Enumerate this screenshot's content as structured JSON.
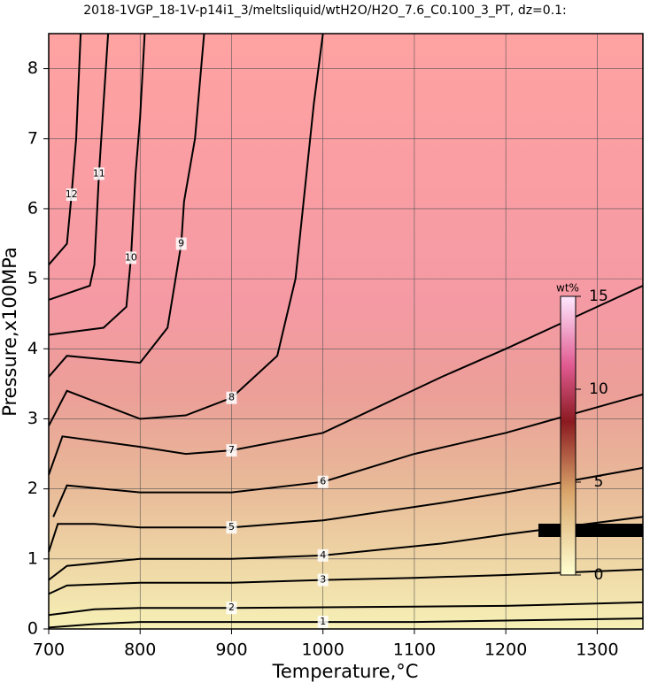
{
  "chart_data": {
    "type": "contour",
    "title": "2018-1VGP_18-1V-p14i1_3/meltsliquid/wtH2O/H2O_7.6_C0.100_3_PT, dz=0.1:",
    "x_label": "Temperature,°C",
    "y_label": "Pressure,x100MPa",
    "xlim": [
      700,
      1350
    ],
    "xticks": [
      700,
      800,
      900,
      1000,
      1100,
      1200,
      1300
    ],
    "ylim": [
      0,
      8.5
    ],
    "yticks": [
      0,
      1,
      2,
      3,
      4,
      5,
      6,
      7,
      8
    ],
    "grid": true,
    "line_color": "#000000",
    "contours": [
      {
        "level": 1,
        "x": [
          700,
          750,
          800,
          900,
          1000,
          1100,
          1200,
          1350
        ],
        "y": [
          0.02,
          0.07,
          0.1,
          0.1,
          0.1,
          0.1,
          0.12,
          0.15
        ]
      },
      {
        "level": 2,
        "x": [
          700,
          750,
          800,
          900,
          1100,
          1200,
          1350
        ],
        "y": [
          0.2,
          0.28,
          0.3,
          0.3,
          0.32,
          0.33,
          0.38
        ]
      },
      {
        "level": 3,
        "x": [
          700,
          720,
          800,
          900,
          1000,
          1100,
          1200,
          1350
        ],
        "y": [
          0.5,
          0.62,
          0.66,
          0.66,
          0.7,
          0.73,
          0.77,
          0.85
        ]
      },
      {
        "level": 4,
        "x": [
          700,
          720,
          800,
          900,
          1000,
          1130,
          1200,
          1350
        ],
        "y": [
          0.7,
          0.9,
          1.0,
          1.0,
          1.05,
          1.22,
          1.35,
          1.6
        ]
      },
      {
        "level": 5,
        "x": [
          700,
          710,
          750,
          800,
          900,
          1000,
          1130,
          1200,
          1350
        ],
        "y": [
          1.1,
          1.5,
          1.5,
          1.45,
          1.45,
          1.55,
          1.8,
          1.95,
          2.3
        ]
      },
      {
        "level": 6,
        "x": [
          705,
          720,
          800,
          900,
          1000,
          1100,
          1200,
          1350
        ],
        "y": [
          1.6,
          2.05,
          1.95,
          1.95,
          2.1,
          2.5,
          2.8,
          3.35
        ]
      },
      {
        "level": 7,
        "x": [
          700,
          715,
          800,
          850,
          900,
          1000,
          1130,
          1200,
          1350
        ],
        "y": [
          2.2,
          2.75,
          2.6,
          2.5,
          2.55,
          2.8,
          3.6,
          4.0,
          4.9
        ]
      },
      {
        "level": 8,
        "x": [
          700,
          720,
          800,
          850,
          900,
          950,
          970,
          990,
          1000
        ],
        "y": [
          2.9,
          3.4,
          3.0,
          3.05,
          3.3,
          3.9,
          5.0,
          7.5,
          8.5
        ]
      },
      {
        "level": 9,
        "x": [
          700,
          720,
          800,
          830,
          845,
          848,
          860,
          870
        ],
        "y": [
          3.6,
          3.9,
          3.8,
          4.3,
          5.5,
          6.1,
          7.0,
          8.5
        ]
      },
      {
        "level": 10,
        "x": [
          700,
          760,
          785,
          790,
          795,
          800,
          805
        ],
        "y": [
          4.2,
          4.3,
          4.6,
          5.3,
          6.5,
          7.3,
          8.5
        ]
      },
      {
        "level": 11,
        "x": [
          700,
          745,
          750,
          755,
          760,
          765
        ],
        "y": [
          4.7,
          4.9,
          5.2,
          6.5,
          7.5,
          8.5
        ]
      },
      {
        "level": 12,
        "x": [
          700,
          720,
          725,
          730,
          735
        ],
        "y": [
          5.2,
          5.5,
          6.2,
          7.0,
          8.5
        ]
      }
    ],
    "colorbar": {
      "label": "wt%",
      "lim": [
        0,
        15
      ],
      "ticks": [
        0,
        5,
        10,
        15
      ]
    }
  }
}
